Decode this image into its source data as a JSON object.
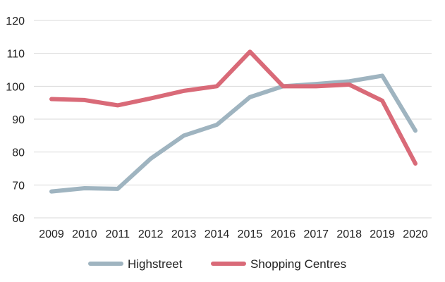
{
  "chart_data": {
    "type": "line",
    "title": "",
    "xlabel": "",
    "ylabel": "",
    "categories": [
      "2009",
      "2010",
      "2011",
      "2012",
      "2013",
      "2014",
      "2015",
      "2016",
      "2017",
      "2018",
      "2019",
      "2020"
    ],
    "ylim": [
      60,
      120
    ],
    "yticks": [
      60,
      70,
      80,
      90,
      100,
      110,
      120
    ],
    "grid": true,
    "legend_position": "bottom",
    "series": [
      {
        "name": "Highstreet",
        "color": "#9fb4c0",
        "values": [
          68,
          69,
          68.8,
          78,
          85,
          88.3,
          96.7,
          100,
          100.7,
          101.5,
          103.2,
          86.5
        ]
      },
      {
        "name": "Shopping Centres",
        "color": "#d96a78",
        "values": [
          96.1,
          95.8,
          94.2,
          96.3,
          98.6,
          100,
          110.5,
          100,
          100,
          100.5,
          95.6,
          76.5
        ]
      }
    ]
  }
}
